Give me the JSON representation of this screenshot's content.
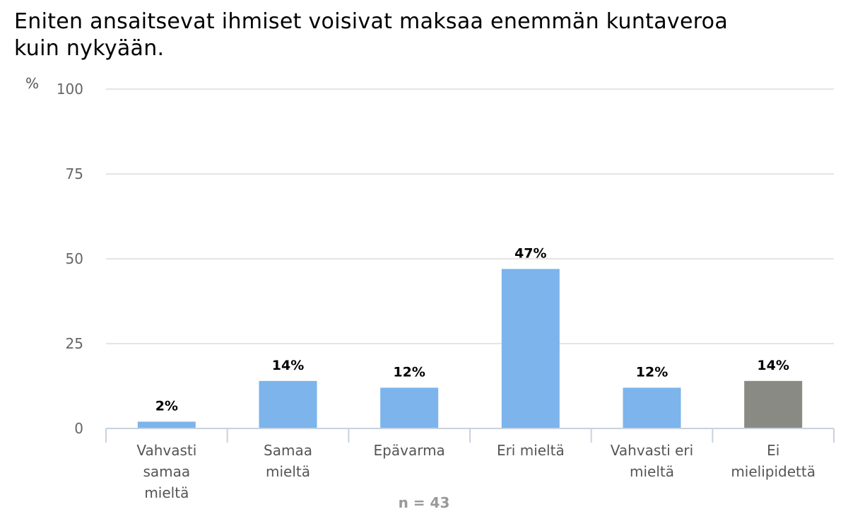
{
  "chart_data": {
    "type": "bar",
    "title_lines": [
      "Eniten ansaitsevat ihmiset voisivat maksaa enemmän kuntaveroa",
      "kuin nykyään."
    ],
    "ylabel": "%",
    "ylim": [
      0,
      100
    ],
    "yticks": [
      0,
      25,
      50,
      75,
      100
    ],
    "categories": [
      [
        "Vahvasti",
        "samaa",
        "mieltä"
      ],
      [
        "Samaa",
        "mieltä"
      ],
      [
        "Epävarma"
      ],
      [
        "Eri mieltä"
      ],
      [
        "Vahvasti eri",
        "mieltä"
      ],
      [
        "Ei",
        "mielipidettä"
      ]
    ],
    "values": [
      2,
      14,
      12,
      47,
      12,
      14
    ],
    "data_labels": [
      "2%",
      "14%",
      "12%",
      "47%",
      "12%",
      "14%"
    ],
    "bar_colors": [
      "#7cb4eb",
      "#7cb4eb",
      "#7cb4eb",
      "#7cb4eb",
      "#7cb4eb",
      "#8a8a85"
    ],
    "grid": true,
    "legend": "none",
    "note": "n = 43"
  }
}
